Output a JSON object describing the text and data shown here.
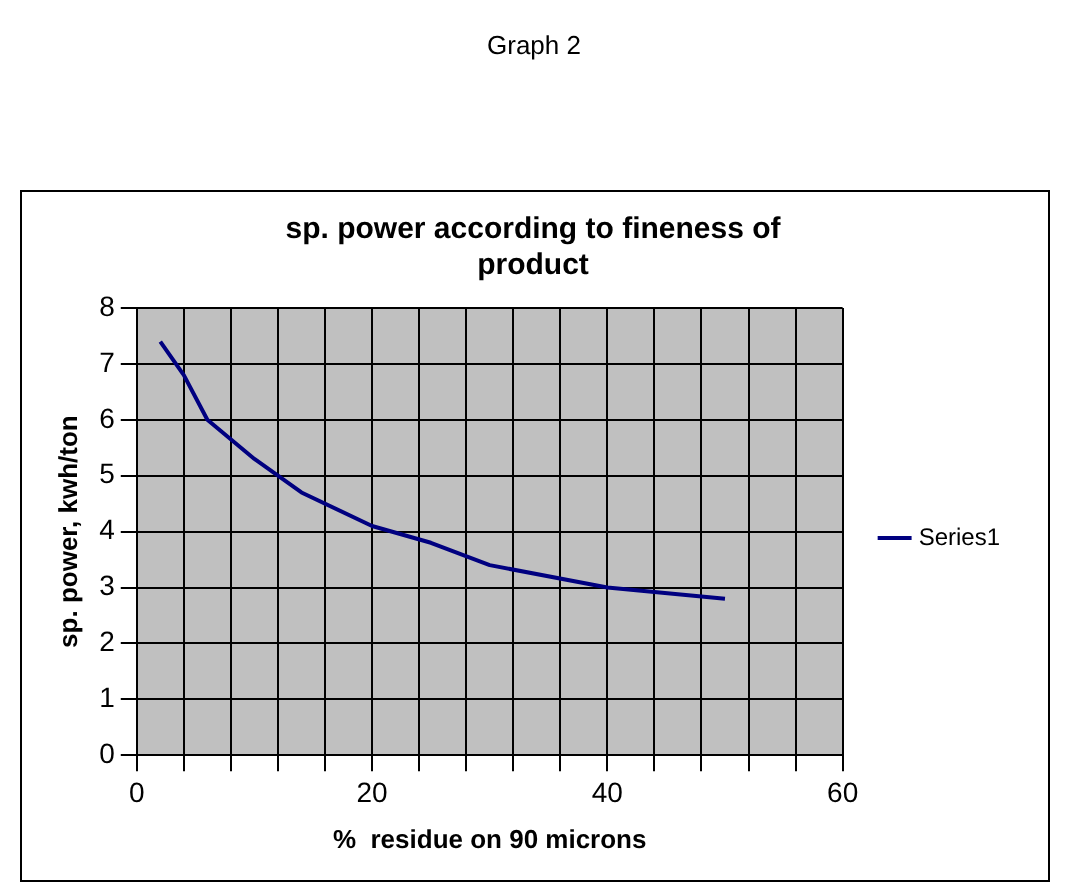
{
  "chart_data": {
    "type": "line",
    "title": "sp. power according to fineness of product",
    "xlabel": "%  residue on 90 microns",
    "ylabel": "sp. power, kwh/ton",
    "annotations": [
      "Graph 2"
    ],
    "series": [
      {
        "name": "Series1",
        "color": "#000080",
        "x": [
          2,
          4,
          6,
          10,
          14,
          20,
          25,
          30,
          40,
          50
        ],
        "values": [
          7.4,
          6.8,
          6.0,
          5.3,
          4.7,
          4.1,
          3.8,
          3.4,
          3.0,
          2.8
        ]
      }
    ],
    "xlim": [
      0,
      60
    ],
    "xticks": [
      0,
      {
        "value": 4,
        "label": null
      },
      {
        "value": 8,
        "label": null
      },
      {
        "value": 12,
        "label": null
      },
      {
        "value": 16,
        "label": null
      },
      20,
      {
        "value": 24,
        "label": null
      },
      {
        "value": 28,
        "label": null
      },
      {
        "value": 32,
        "label": null
      },
      {
        "value": 36,
        "label": null
      },
      40,
      {
        "value": 44,
        "label": null
      },
      {
        "value": 48,
        "label": null
      },
      {
        "value": 52,
        "label": null
      },
      {
        "value": 56,
        "label": null
      },
      60
    ],
    "ylim": [
      0,
      8
    ],
    "yticks": [
      0,
      1,
      2,
      3,
      4,
      5,
      6,
      7,
      8
    ],
    "grid": true,
    "legend": "right",
    "marker": "none",
    "line_style": "solid"
  }
}
